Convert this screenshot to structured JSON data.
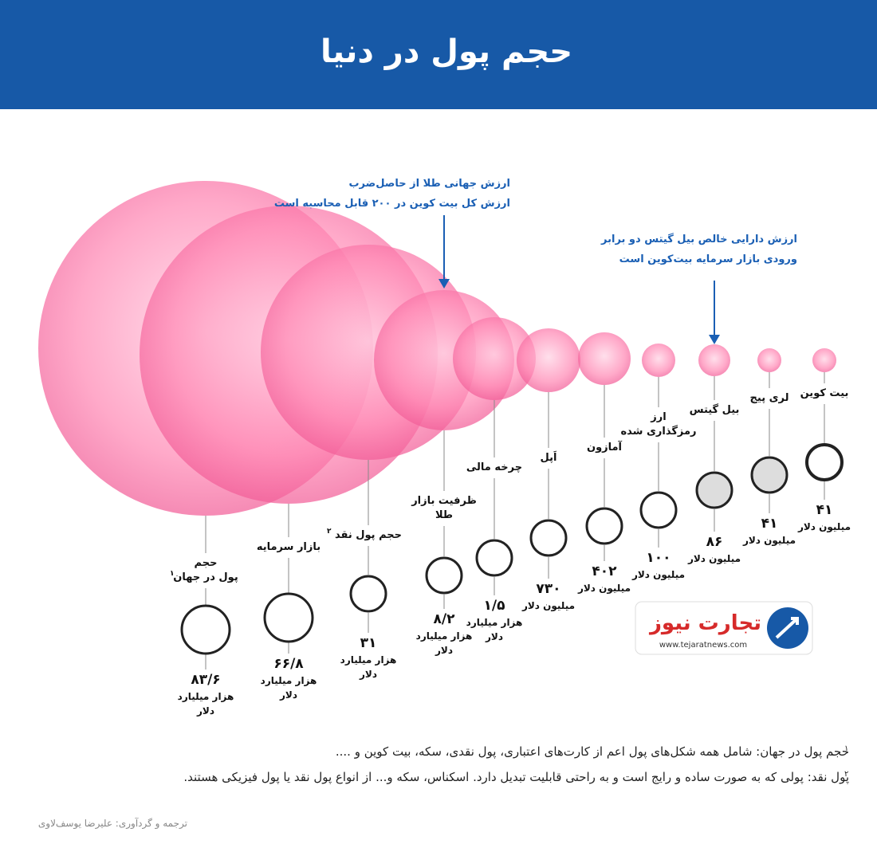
{
  "header": {
    "title": "حجم پول در دنیا"
  },
  "annotations": [
    {
      "lines": [
        "ارزش جهانی طلا از حاصل‌ضرب",
        "ارزش کل بیت کوین در ۲۰۰ قابل محاسبه است"
      ]
    },
    {
      "lines": [
        "ارزش دارایی خالص بیل گیتس دو برابر",
        "ورودی بازار سرمایه بیت‌کوین است"
      ]
    }
  ],
  "items": [
    {
      "label": [
        "بیت کوین"
      ],
      "value": "۴۱",
      "unit": [
        "میلیون دلار"
      ]
    },
    {
      "label": [
        "لری پیج"
      ],
      "value": "۴۱",
      "unit": [
        "میلیون دلار"
      ]
    },
    {
      "label": [
        "بیل گیتس"
      ],
      "value": "۸۶",
      "unit": [
        "میلیون دلار"
      ]
    },
    {
      "label": [
        "ارز",
        "رمزگذاری شده"
      ],
      "value": "۱۰۰",
      "unit": [
        "میلیون دلار"
      ]
    },
    {
      "label": [
        "آمازون"
      ],
      "value": "۴۰۲",
      "unit": [
        "میلیون دلار"
      ]
    },
    {
      "label": [
        "اَپل"
      ],
      "value": "۷۳۰",
      "unit": [
        "میلیون دلار"
      ]
    },
    {
      "label": [
        "چرخه مالی"
      ],
      "value": "۱/۵",
      "unit": [
        "هزار میلیارد",
        "دلار"
      ]
    },
    {
      "label": [
        "ظرفیت بازار",
        "طلا"
      ],
      "value": "۸/۲",
      "unit": [
        "هزار میلیارد",
        "دلار"
      ]
    },
    {
      "label": [
        "حجم پول نقد"
      ],
      "sup": "۲",
      "value": "۳۱",
      "unit": [
        "هزار میلیارد",
        "دلار"
      ]
    },
    {
      "label": [
        "بازار سرمایه"
      ],
      "value": "۶۶/۸",
      "unit": [
        "هزار میلیارد",
        "دلار"
      ]
    },
    {
      "label": [
        "حجم",
        "پول در جهان"
      ],
      "sup": "۱",
      "value": "۸۳/۶",
      "unit": [
        "هزار میلیارد",
        "دلار"
      ]
    }
  ],
  "logo": {
    "name": "تجارت نیوز",
    "url": "www.tejaratnews.com"
  },
  "footnotes": [
    {
      "marker": "۱",
      "text": "حجم پول در جهان: شامل همه شکل‌های پول اعم از کارت‌های اعتباری، پول نقدی، سکه، بیت کوین و ...."
    },
    {
      "marker": "۲",
      "text": "پول نقد: پولی که به صورت ساده و رایج است و به راحتی قابلیت تبدیل دارد. اسکناس، سکه و... از انواع پول نقد یا پول فیزیکی هستند."
    }
  ],
  "credit": "ترجمه و گردآوری: علیرضا یوسف‌لاوی"
}
